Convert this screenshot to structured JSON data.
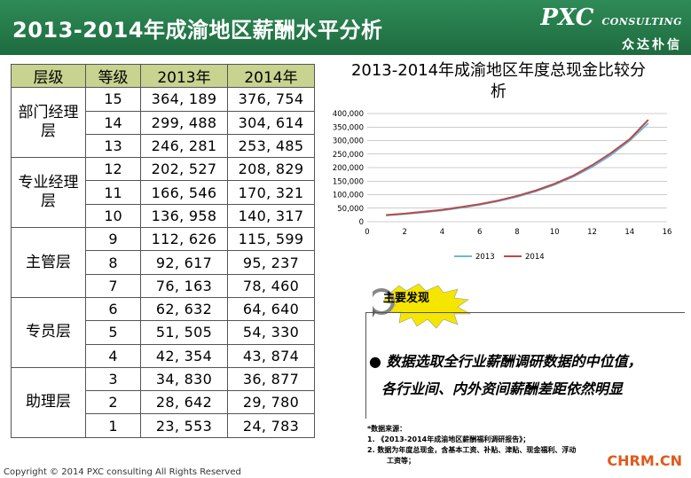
{
  "header": {
    "title": "2013-2014年成渝地区薪酬水平分析",
    "logo_main": "PXC",
    "logo_sub": "CONSULTING",
    "logo_cn": "众达朴信"
  },
  "table": {
    "headers": [
      "层级",
      "等级",
      "2013年",
      "2014年"
    ],
    "groups": [
      {
        "name": "部门经理层",
        "rows": [
          [
            "15",
            "364, 189",
            "376, 754"
          ],
          [
            "14",
            "299, 488",
            "304, 614"
          ],
          [
            "13",
            "246, 281",
            "253, 485"
          ]
        ]
      },
      {
        "name": "专业经理层",
        "rows": [
          [
            "12",
            "202, 527",
            "208, 829"
          ],
          [
            "11",
            "166, 546",
            "170, 321"
          ],
          [
            "10",
            "136, 958",
            "140, 317"
          ]
        ]
      },
      {
        "name": "主管层",
        "rows": [
          [
            "9",
            "112, 626",
            "115, 599"
          ],
          [
            "8",
            "92, 617",
            "95, 237"
          ],
          [
            "7",
            "76, 163",
            "78, 460"
          ]
        ]
      },
      {
        "name": "专员层",
        "rows": [
          [
            "6",
            "62, 632",
            "64, 640"
          ],
          [
            "5",
            "51, 505",
            "54, 330"
          ],
          [
            "4",
            "42, 354",
            "43, 874"
          ]
        ]
      },
      {
        "name": "助理层",
        "rows": [
          [
            "3",
            "34, 830",
            "36, 877"
          ],
          [
            "2",
            "28, 642",
            "29, 780"
          ],
          [
            "1",
            "23, 553",
            "24, 783"
          ]
        ]
      }
    ]
  },
  "chart_title": "2013-2014年成渝地区年度总现金比较分析",
  "chart_data": {
    "type": "line",
    "x": [
      1,
      2,
      3,
      4,
      5,
      6,
      7,
      8,
      9,
      10,
      11,
      12,
      13,
      14,
      15
    ],
    "series": [
      {
        "name": "2013",
        "color": "#6fb7d6",
        "values": [
          23553,
          28642,
          34830,
          42354,
          51505,
          62632,
          76163,
          92617,
          112626,
          136958,
          166546,
          202527,
          246281,
          299488,
          364189
        ]
      },
      {
        "name": "2014",
        "color": "#b84a4a",
        "values": [
          24783,
          29780,
          36877,
          43874,
          54330,
          64640,
          78460,
          95237,
          115599,
          140317,
          170321,
          208829,
          253485,
          304614,
          376754
        ]
      }
    ],
    "xticks": [
      0,
      2,
      4,
      6,
      8,
      10,
      12,
      14,
      16
    ],
    "yticks": [
      "0",
      "50,000",
      "100,000",
      "150,000",
      "200,000",
      "250,000",
      "300,000",
      "350,000",
      "400,000"
    ],
    "xlim": [
      0,
      16
    ],
    "ylim": [
      0,
      400000
    ],
    "grid": true,
    "legend": "bottom"
  },
  "findings": {
    "badge": "主要发现",
    "line1": "数据选取全行业薪酬调研数据的中位值，",
    "line2": "各行业间、内外资间薪酬差距依然明显"
  },
  "notes": {
    "heading": "*数据来源：",
    "items": [
      "1.   《2013-2014年成渝地区薪酬福利调研报告》；",
      "2.   数据为年度总现金，含基本工资、补贴、津贴、现金福利、浮动",
      "工资等；"
    ]
  },
  "footer": {
    "copyright": "Copyright © 2014 PXC consulting All Rights Reserved",
    "brand": "CHRM.CN"
  }
}
